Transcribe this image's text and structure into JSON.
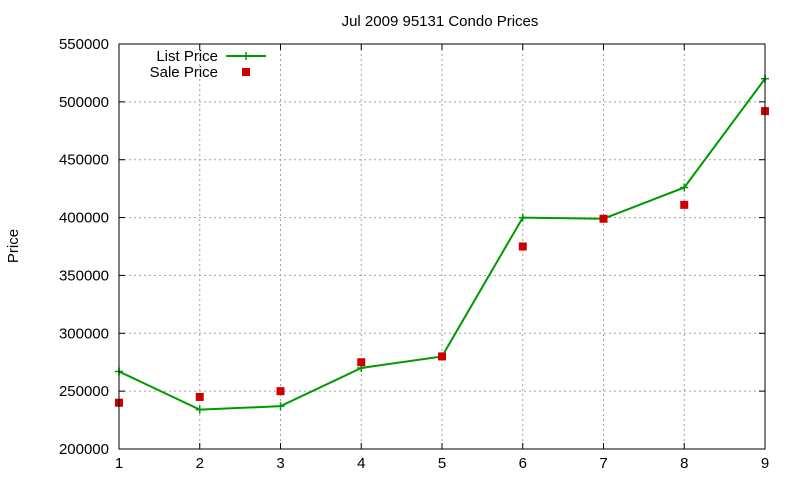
{
  "chart_data": {
    "type": "line",
    "title": "Jul 2009 95131 Condo Prices",
    "xlabel": "",
    "ylabel": "Price",
    "x": [
      1,
      2,
      3,
      4,
      5,
      6,
      7,
      8,
      9
    ],
    "xlim": [
      1,
      9
    ],
    "ylim": [
      200000,
      550000
    ],
    "xticks": [
      "1",
      "2",
      "3",
      "4",
      "5",
      "6",
      "7",
      "8",
      "9"
    ],
    "yticks": [
      "200000",
      "250000",
      "300000",
      "350000",
      "400000",
      "450000",
      "500000",
      "550000"
    ],
    "grid": true,
    "legend_position": "top-left",
    "series": [
      {
        "name": "List Price",
        "style": "line-with-plus-markers",
        "color": "#009900",
        "values": [
          267000,
          234000,
          237000,
          270000,
          280000,
          400000,
          399000,
          426000,
          520000
        ]
      },
      {
        "name": "Sale Price",
        "style": "square-markers",
        "color": "#cc0000",
        "values": [
          240000,
          245000,
          250000,
          275000,
          280000,
          375000,
          399000,
          411000,
          492000
        ]
      }
    ]
  }
}
